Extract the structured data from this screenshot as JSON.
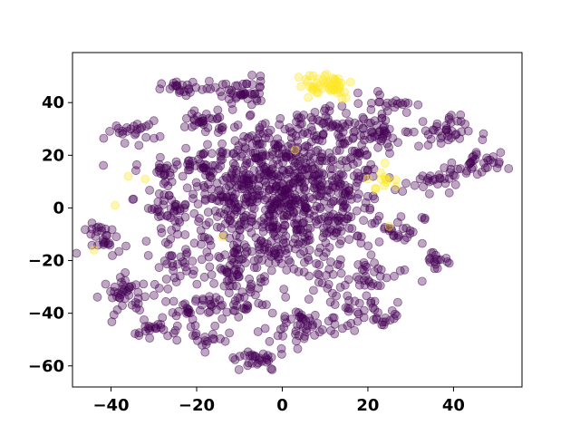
{
  "chart_data": {
    "type": "scatter",
    "title": "",
    "xlabel": "",
    "ylabel": "",
    "xlim": [
      -49,
      56
    ],
    "ylim": [
      -68,
      59
    ],
    "x_ticks": [
      -40,
      -20,
      0,
      20,
      40
    ],
    "y_ticks": [
      -60,
      -40,
      -20,
      0,
      20,
      40
    ],
    "x_tick_labels": [
      "−40",
      "−20",
      "0",
      "20",
      "40"
    ],
    "y_tick_labels": [
      "−60",
      "−40",
      "−20",
      "0",
      "20",
      "40"
    ],
    "grid": false,
    "legend": "none",
    "point_alpha": 0.35,
    "colors": {
      "class_0": "#440154",
      "class_1": "#fde725"
    },
    "series": [
      {
        "color": "#440154",
        "clusters": [
          {
            "cx": 0,
            "cy": 0,
            "sx": 12,
            "sy": 14,
            "n": 700
          },
          {
            "cx": 6,
            "cy": 20,
            "sx": 8,
            "sy": 8,
            "n": 120
          },
          {
            "cx": -10,
            "cy": 44,
            "sx": 3.5,
            "sy": 3,
            "n": 45
          },
          {
            "cx": -23,
            "cy": 45,
            "sx": 2.5,
            "sy": 1.5,
            "n": 22
          },
          {
            "cx": -18,
            "cy": 33,
            "sx": 3,
            "sy": 2.5,
            "n": 30
          },
          {
            "cx": -35,
            "cy": 29,
            "sx": 3,
            "sy": 2,
            "n": 25
          },
          {
            "cx": -19,
            "cy": 15,
            "sx": 5,
            "sy": 3.5,
            "n": 45
          },
          {
            "cx": -28,
            "cy": 14,
            "sx": 2,
            "sy": 2,
            "n": 14
          },
          {
            "cx": -27,
            "cy": 0,
            "sx": 2.5,
            "sy": 3,
            "n": 30
          },
          {
            "cx": -13,
            "cy": 3,
            "sx": 3,
            "sy": 3,
            "n": 24
          },
          {
            "cx": -41,
            "cy": -12,
            "sx": 2.5,
            "sy": 3,
            "n": 30
          },
          {
            "cx": -26,
            "cy": -22,
            "sx": 3,
            "sy": 4,
            "n": 30
          },
          {
            "cx": -36,
            "cy": -33,
            "sx": 3,
            "sy": 3.5,
            "n": 40
          },
          {
            "cx": -21,
            "cy": -38,
            "sx": 3.5,
            "sy": 3,
            "n": 35
          },
          {
            "cx": -29,
            "cy": -47,
            "sx": 3,
            "sy": 2,
            "n": 24
          },
          {
            "cx": -18,
            "cy": -50,
            "sx": 2,
            "sy": 2,
            "n": 15
          },
          {
            "cx": -10,
            "cy": -24,
            "sx": 3,
            "sy": 4,
            "n": 30
          },
          {
            "cx": -9,
            "cy": -37,
            "sx": 3,
            "sy": 4,
            "n": 28
          },
          {
            "cx": -6,
            "cy": -58,
            "sx": 3.5,
            "sy": 2.5,
            "n": 30
          },
          {
            "cx": 5,
            "cy": -45,
            "sx": 4,
            "sy": 4,
            "n": 45
          },
          {
            "cx": 15,
            "cy": -38,
            "sx": 3,
            "sy": 3,
            "n": 30
          },
          {
            "cx": 24,
            "cy": -42,
            "sx": 2,
            "sy": 2,
            "n": 15
          },
          {
            "cx": 20,
            "cy": -25,
            "sx": 4,
            "sy": 3,
            "n": 30
          },
          {
            "cx": 28,
            "cy": -8,
            "sx": 2.5,
            "sy": 3,
            "n": 20
          },
          {
            "cx": 36,
            "cy": -20,
            "sx": 2,
            "sy": 2,
            "n": 16
          },
          {
            "cx": 34,
            "cy": 10,
            "sx": 3,
            "sy": 2,
            "n": 22
          },
          {
            "cx": 37,
            "cy": 29,
            "sx": 3.5,
            "sy": 3,
            "n": 40
          },
          {
            "cx": 45,
            "cy": 16,
            "sx": 3,
            "sy": 2.5,
            "n": 35
          },
          {
            "cx": 21,
            "cy": 29,
            "sx": 4,
            "sy": 3,
            "n": 40
          },
          {
            "cx": 25,
            "cy": 40,
            "sx": 3,
            "sy": 2,
            "n": 22
          },
          {
            "cx": 10,
            "cy": 33,
            "sx": 4,
            "sy": 3,
            "n": 30
          },
          {
            "cx": -7,
            "cy": 22,
            "sx": 4,
            "sy": 4,
            "n": 30
          }
        ]
      },
      {
        "color": "#fde725",
        "clusters": [
          {
            "cx": 10,
            "cy": 47,
            "sx": 3.5,
            "sy": 3,
            "n": 50
          },
          {
            "cx": 24,
            "cy": 10,
            "sx": 2,
            "sy": 2,
            "n": 12
          }
        ],
        "points": [
          [
            -36,
            12
          ],
          [
            -44,
            -16
          ],
          [
            -39,
            1
          ],
          [
            -14,
            -11
          ],
          [
            25,
            -7
          ],
          [
            3,
            22
          ],
          [
            24,
            17
          ],
          [
            -32,
            11
          ]
        ]
      }
    ]
  }
}
